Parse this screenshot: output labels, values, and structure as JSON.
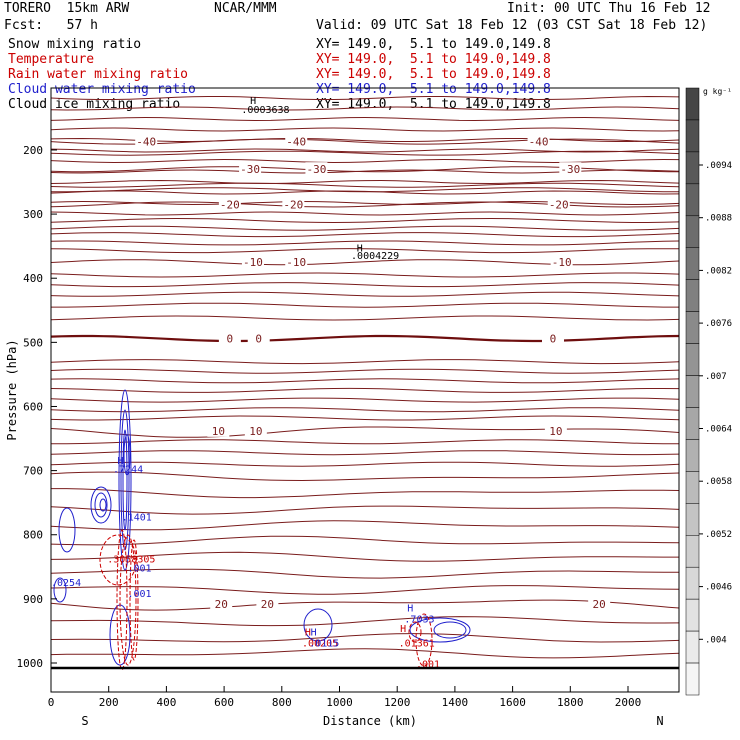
{
  "header": {
    "left1": "TORERO  15km ARW",
    "left2": "Fcst:   57 h",
    "center": "NCAR/MMM",
    "init": "Init: 00 UTC Thu 16 Feb 12",
    "valid": "Valid: 09 UTC Sat 18 Feb 12 (03 CST Sat 18 Feb 12)"
  },
  "fields": [
    {
      "name": "Snow mixing ratio",
      "xy": "XY= 149.0,  5.1 to 149.0,149.8",
      "color": "#000000"
    },
    {
      "name": "Temperature",
      "xy": "XY= 149.0,  5.1 to 149.0,149.8",
      "color": "#cc0000"
    },
    {
      "name": "Rain water mixing ratio",
      "xy": "XY= 149.0,  5.1 to 149.0,149.8",
      "color": "#cc0000"
    },
    {
      "name": "Cloud water mixing ratio",
      "xy": "XY= 149.0,  5.1 to 149.0,149.8",
      "color": "#1f1fcc"
    },
    {
      "name": "Cloud ice mixing ratio",
      "xy": "XY= 149.0,  5.1 to 149.0,149.8",
      "color": "#000000"
    }
  ],
  "chart_data": {
    "type": "line",
    "title": "",
    "xlabel": "Distance (km)",
    "ylabel": "Pressure (hPa)",
    "xlim": [
      0,
      2180
    ],
    "ylim": [
      1015,
      100
    ],
    "x_ticks": [
      0,
      200,
      400,
      600,
      800,
      1000,
      1200,
      1400,
      1600,
      1800,
      2000
    ],
    "y_ticks": [
      200,
      300,
      400,
      500,
      600,
      700,
      800,
      900,
      1000
    ],
    "x_end_labels": {
      "left": "S",
      "right": "N"
    },
    "isotherms": [
      {
        "value": -40,
        "p": 187,
        "labels": [
          {
            "text": "-40",
            "x": 330
          },
          {
            "text": "-40",
            "x": 850
          },
          {
            "text": "-40",
            "x": 1690
          }
        ]
      },
      {
        "value": -30,
        "p": 230,
        "labels": [
          {
            "text": "-30",
            "x": 690
          },
          {
            "text": "-30",
            "x": 920
          },
          {
            "text": "-30",
            "x": 1800
          }
        ]
      },
      {
        "value": -20,
        "p": 285,
        "labels": [
          {
            "text": "-20",
            "x": 620
          },
          {
            "text": "-20",
            "x": 840
          },
          {
            "text": "-20",
            "x": 1760
          }
        ]
      },
      {
        "value": -10,
        "p": 375,
        "labels": [
          {
            "text": "-10",
            "x": 700
          },
          {
            "text": "-10",
            "x": 850
          },
          {
            "text": "-10",
            "x": 1770
          }
        ]
      },
      {
        "value": 0,
        "p": 494,
        "labels": [
          {
            "text": "0",
            "x": 620
          },
          {
            "text": "0",
            "x": 720
          },
          {
            "text": "0",
            "x": 1740
          }
        ]
      },
      {
        "value": 10,
        "p": 638,
        "labels": [
          {
            "text": "10",
            "x": 580
          },
          {
            "text": "10",
            "x": 710
          },
          {
            "text": "10",
            "x": 1750
          }
        ]
      },
      {
        "value": 20,
        "p": 908,
        "labels": [
          {
            "text": "20",
            "x": 590
          },
          {
            "text": "20",
            "x": 750
          },
          {
            "text": "20",
            "x": 1900
          }
        ]
      }
    ],
    "annotations": [
      {
        "text": "H",
        "x": 690,
        "p": 128,
        "color": "#000000"
      },
      {
        "text": ".0003638",
        "x": 660,
        "p": 142,
        "color": "#000000"
      },
      {
        "text": "H",
        "x": 1060,
        "p": 358,
        "color": "#000000"
      },
      {
        "text": ".0004229",
        "x": 1040,
        "p": 370,
        "color": "#000000"
      },
      {
        "text": "H",
        "x": 230,
        "p": 690,
        "color": "#1f1fcc"
      },
      {
        "text": ".7244",
        "x": 215,
        "p": 703,
        "color": "#1f1fcc"
      },
      {
        "text": ".1401",
        "x": 245,
        "p": 778,
        "color": "#1f1fcc"
      },
      {
        "text": ".3058305",
        "x": 195,
        "p": 843,
        "color": "#cc0000"
      },
      {
        "text": ".001",
        "x": 265,
        "p": 857,
        "color": "#1f1fcc"
      },
      {
        "text": ".0254",
        "x": 0,
        "p": 880,
        "color": "#1f1fcc"
      },
      {
        "text": ".001",
        "x": 265,
        "p": 897,
        "color": "#1f1fcc"
      },
      {
        "text": "H",
        "x": 880,
        "p": 957,
        "color": "#cc0000"
      },
      {
        "text": "H",
        "x": 900,
        "p": 957,
        "color": "#1f1fcc"
      },
      {
        "text": ".00205",
        "x": 870,
        "p": 974,
        "color": "#cc0000"
      },
      {
        "text": ".0115",
        "x": 895,
        "p": 974,
        "color": "#1f1fcc"
      },
      {
        "text": "H",
        "x": 1235,
        "p": 920,
        "color": "#1f1fcc"
      },
      {
        "text": ".7033",
        "x": 1225,
        "p": 937,
        "color": "#1f1fcc"
      },
      {
        "text": "H",
        "x": 1210,
        "p": 952,
        "color": "#cc0000"
      },
      {
        "text": ".01361",
        "x": 1205,
        "p": 974,
        "color": "#cc0000"
      },
      {
        "text": ".001",
        "x": 1265,
        "p": 1007,
        "color": "#cc0000"
      }
    ],
    "colorbar": {
      "unit": "g kg⁻¹",
      "labels": [
        ".0094",
        ".0088",
        ".0082",
        ".0076",
        ".007",
        ".0064",
        ".0058",
        ".0052",
        ".0046",
        ".004"
      ]
    }
  }
}
